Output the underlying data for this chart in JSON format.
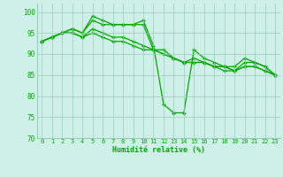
{
  "xlabel": "Humidité relative (%)",
  "xlim": [
    -0.5,
    23.5
  ],
  "ylim": [
    70,
    102
  ],
  "yticks": [
    70,
    75,
    80,
    85,
    90,
    95,
    100
  ],
  "xticks": [
    0,
    1,
    2,
    3,
    4,
    5,
    6,
    7,
    8,
    9,
    10,
    11,
    12,
    13,
    14,
    15,
    16,
    17,
    18,
    19,
    20,
    21,
    22,
    23
  ],
  "background_color": "#cff0e8",
  "grid_color": "#99ccbb",
  "line_color": "#00aa00",
  "series": [
    [
      93,
      94,
      95,
      96,
      95,
      99,
      98,
      97,
      97,
      97,
      98,
      92,
      78,
      76,
      76,
      91,
      89,
      88,
      87,
      87,
      89,
      88,
      87,
      85
    ],
    [
      93,
      94,
      95,
      96,
      95,
      98,
      97,
      97,
      97,
      97,
      97,
      91,
      91,
      89,
      88,
      89,
      88,
      87,
      87,
      86,
      88,
      88,
      87,
      85
    ],
    [
      93,
      94,
      95,
      95,
      94,
      96,
      95,
      94,
      94,
      93,
      92,
      91,
      90,
      89,
      88,
      88,
      88,
      87,
      87,
      86,
      87,
      87,
      86,
      85
    ],
    [
      93,
      94,
      95,
      95,
      94,
      95,
      94,
      93,
      93,
      92,
      91,
      91,
      90,
      89,
      88,
      88,
      88,
      87,
      86,
      86,
      87,
      87,
      86,
      85
    ]
  ]
}
